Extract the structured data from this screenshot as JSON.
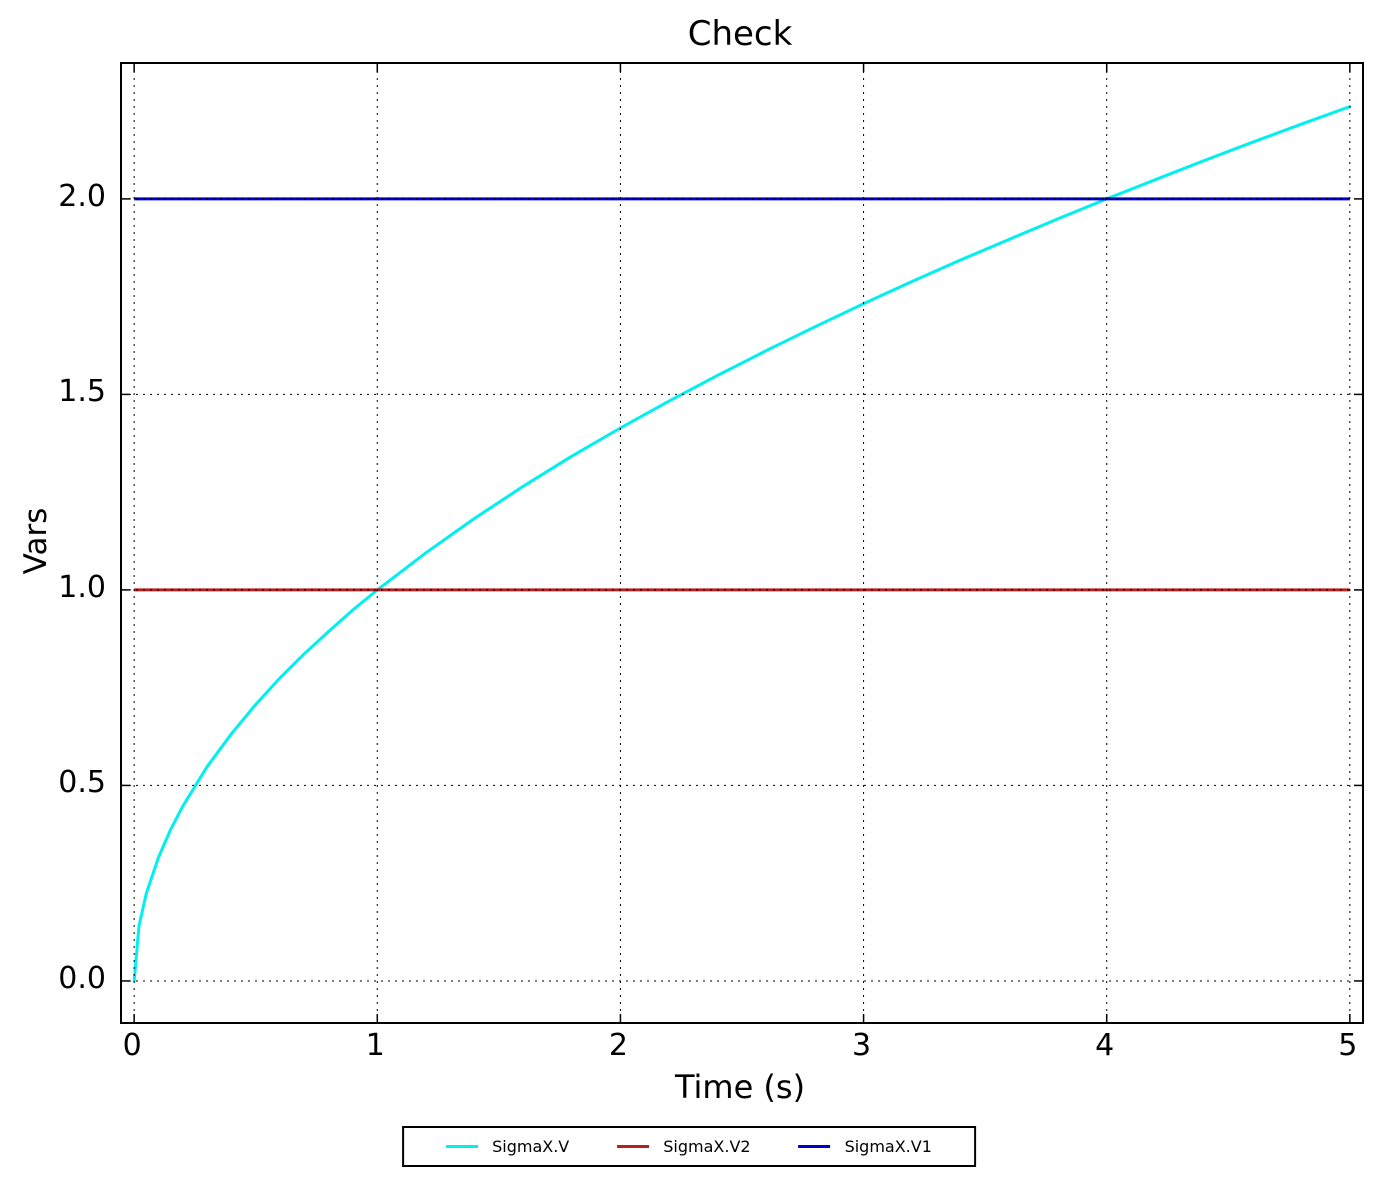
{
  "chart_data": {
    "type": "line",
    "title": "Check",
    "xlabel": "Time (s)",
    "ylabel": "Vars",
    "xlim": [
      -0.05,
      5.05
    ],
    "ylim": [
      -0.105,
      2.345
    ],
    "xticks": [
      0,
      1,
      2,
      3,
      4,
      5
    ],
    "xtick_labels": [
      "0",
      "1",
      "2",
      "3",
      "4",
      "5"
    ],
    "yticks": [
      0,
      0.5,
      1,
      1.5,
      2
    ],
    "ytick_labels": [
      "0.0",
      "0.5",
      "1.0",
      "1.5",
      "2.0"
    ],
    "grid": true,
    "grid_style": "dotted",
    "grid_color": "#000000",
    "axis_color": "#000000",
    "legend_position": "bottom-center",
    "series": [
      {
        "name": "SigmaX.V",
        "kind": "curve",
        "color": "#00f0f0",
        "points": [
          [
            0,
            0
          ],
          [
            0.02,
            0.141
          ],
          [
            0.05,
            0.224
          ],
          [
            0.1,
            0.316
          ],
          [
            0.15,
            0.387
          ],
          [
            0.2,
            0.447
          ],
          [
            0.3,
            0.548
          ],
          [
            0.4,
            0.632
          ],
          [
            0.5,
            0.707
          ],
          [
            0.6,
            0.775
          ],
          [
            0.7,
            0.837
          ],
          [
            0.8,
            0.894
          ],
          [
            0.9,
            0.949
          ],
          [
            1.0,
            1.0
          ],
          [
            1.2,
            1.095
          ],
          [
            1.4,
            1.183
          ],
          [
            1.6,
            1.265
          ],
          [
            1.8,
            1.342
          ],
          [
            2.0,
            1.414
          ],
          [
            2.2,
            1.483
          ],
          [
            2.4,
            1.549
          ],
          [
            2.6,
            1.612
          ],
          [
            2.8,
            1.673
          ],
          [
            3.0,
            1.732
          ],
          [
            3.2,
            1.789
          ],
          [
            3.4,
            1.844
          ],
          [
            3.6,
            1.897
          ],
          [
            3.8,
            1.949
          ],
          [
            4.0,
            2.0
          ],
          [
            4.2,
            2.049
          ],
          [
            4.4,
            2.098
          ],
          [
            4.6,
            2.145
          ],
          [
            4.8,
            2.191
          ],
          [
            5.0,
            2.236
          ]
        ]
      },
      {
        "name": "SigmaX.V2",
        "kind": "hline",
        "color": "#b22222",
        "value": 1.0,
        "x_range": [
          0,
          5
        ]
      },
      {
        "name": "SigmaX.V1",
        "kind": "hline",
        "color": "#0000cd",
        "value": 2.0,
        "x_range": [
          0,
          5
        ]
      }
    ]
  }
}
